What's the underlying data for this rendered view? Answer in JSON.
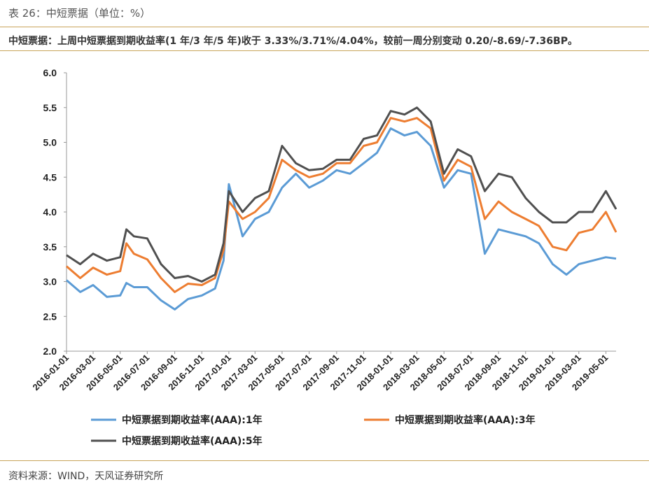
{
  "caption": "表 26：中短票据（单位：%）",
  "summary": "中短票据：上周中短票据到期收益率(1 年/3 年/5 年)收于 3.33%/3.71%/4.04%，较前一周分别变动 0.20/-8.69/-7.36BP。",
  "source": "资料来源：WIND，天风证券研究所",
  "colors": {
    "s1": "#5b9bd5",
    "s3": "#ed7d31",
    "s5": "#505050",
    "rule": "#c8a45a"
  },
  "chart_data": {
    "type": "line",
    "title": "",
    "xlabel": "",
    "ylabel": "",
    "ylim": [
      2.0,
      6.0
    ],
    "yticks": [
      "2.0",
      "2.5",
      "3.0",
      "3.5",
      "4.0",
      "4.5",
      "5.0",
      "5.5",
      "6.0"
    ],
    "xticks": [
      "2016-01-01",
      "2016-03-01",
      "2016-05-01",
      "2016-07-01",
      "2016-09-01",
      "2016-11-01",
      "2017-01-01",
      "2017-03-01",
      "2017-05-01",
      "2017-07-01",
      "2017-09-01",
      "2017-11-01",
      "2018-01-01",
      "2018-03-01",
      "2018-05-01",
      "2018-07-01",
      "2018-09-01",
      "2018-11-01",
      "2019-01-01",
      "2019-03-01",
      "2019-05-01"
    ],
    "grid": false,
    "legend": "bottom",
    "x": [
      "2016-01-01",
      "2016-02-01",
      "2016-03-01",
      "2016-04-01",
      "2016-05-01",
      "2016-05-15",
      "2016-06-01",
      "2016-07-01",
      "2016-08-01",
      "2016-09-01",
      "2016-10-01",
      "2016-11-01",
      "2016-12-01",
      "2016-12-20",
      "2017-01-01",
      "2017-02-01",
      "2017-03-01",
      "2017-04-01",
      "2017-05-01",
      "2017-06-01",
      "2017-07-01",
      "2017-08-01",
      "2017-09-01",
      "2017-10-01",
      "2017-11-01",
      "2017-12-01",
      "2018-01-01",
      "2018-02-01",
      "2018-03-01",
      "2018-04-01",
      "2018-05-01",
      "2018-06-01",
      "2018-07-01",
      "2018-08-01",
      "2018-09-01",
      "2018-10-01",
      "2018-11-01",
      "2018-12-01",
      "2019-01-01",
      "2019-02-01",
      "2019-03-01",
      "2019-04-01",
      "2019-05-01",
      "2019-05-24"
    ],
    "series": [
      {
        "name": "中短票据到期收益率(AAA):1年",
        "values": [
          3.02,
          2.85,
          2.95,
          2.78,
          2.8,
          2.98,
          2.92,
          2.92,
          2.73,
          2.6,
          2.75,
          2.8,
          2.9,
          3.3,
          4.4,
          3.65,
          3.9,
          4.0,
          4.35,
          4.55,
          4.35,
          4.45,
          4.6,
          4.55,
          4.7,
          4.85,
          5.2,
          5.1,
          5.15,
          4.95,
          4.35,
          4.6,
          4.55,
          3.4,
          3.75,
          3.7,
          3.65,
          3.55,
          3.25,
          3.1,
          3.25,
          3.3,
          3.35,
          3.33
        ]
      },
      {
        "name": "中短票据到期收益率(AAA):3年",
        "values": [
          3.22,
          3.05,
          3.2,
          3.1,
          3.15,
          3.55,
          3.4,
          3.32,
          3.05,
          2.85,
          2.97,
          2.95,
          3.05,
          3.45,
          4.15,
          3.9,
          4.0,
          4.2,
          4.75,
          4.6,
          4.5,
          4.55,
          4.7,
          4.7,
          4.95,
          5.0,
          5.35,
          5.3,
          5.35,
          5.2,
          4.45,
          4.75,
          4.65,
          3.9,
          4.15,
          4.0,
          3.9,
          3.8,
          3.5,
          3.45,
          3.7,
          3.75,
          4.0,
          3.71
        ]
      },
      {
        "name": "中短票据到期收益率(AAA):5年",
        "values": [
          3.38,
          3.25,
          3.4,
          3.3,
          3.35,
          3.75,
          3.65,
          3.62,
          3.25,
          3.05,
          3.08,
          3.0,
          3.1,
          3.55,
          4.3,
          4.0,
          4.2,
          4.3,
          4.95,
          4.7,
          4.6,
          4.62,
          4.75,
          4.75,
          5.05,
          5.1,
          5.45,
          5.4,
          5.5,
          5.3,
          4.55,
          4.9,
          4.8,
          4.3,
          4.55,
          4.5,
          4.2,
          4.0,
          3.85,
          3.85,
          4.0,
          4.0,
          4.3,
          4.04
        ]
      }
    ]
  }
}
